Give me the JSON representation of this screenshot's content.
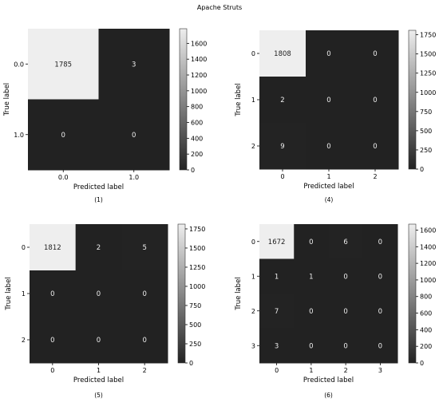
{
  "figure": {
    "title": "Apache Struts"
  },
  "chart_data": [
    {
      "type": "heatmap",
      "caption": "(1)",
      "xlabel": "Predicted label",
      "ylabel": "True label",
      "x_ticks": [
        "0.0",
        "1.0"
      ],
      "y_ticks": [
        "0.0",
        "1.0"
      ],
      "values": [
        [
          1785,
          3
        ],
        [
          0,
          0
        ]
      ],
      "colorbar": {
        "range": [
          0,
          1785
        ],
        "ticks": [
          "0",
          "200",
          "400",
          "600",
          "800",
          "1000",
          "1200",
          "1400",
          "1600"
        ],
        "tick_values": [
          0,
          200,
          400,
          600,
          800,
          1000,
          1200,
          1400,
          1600
        ]
      },
      "colormap": [
        "#222222",
        "#eeeeee"
      ]
    },
    {
      "type": "heatmap",
      "caption": "(4)",
      "xlabel": "Predicted label",
      "ylabel": "True label",
      "x_ticks": [
        "0",
        "1",
        "2"
      ],
      "y_ticks": [
        "0",
        "1",
        "2"
      ],
      "values": [
        [
          1808,
          0,
          0
        ],
        [
          2,
          0,
          0
        ],
        [
          9,
          0,
          0
        ]
      ],
      "colorbar": {
        "range": [
          0,
          1808
        ],
        "ticks": [
          "0",
          "250",
          "500",
          "750",
          "1000",
          "1250",
          "1500",
          "1750"
        ],
        "tick_values": [
          0,
          250,
          500,
          750,
          1000,
          1250,
          1500,
          1750
        ]
      },
      "colormap": [
        "#222222",
        "#eeeeee"
      ]
    },
    {
      "type": "heatmap",
      "caption": "(5)",
      "xlabel": "Predicted label",
      "ylabel": "True label",
      "x_ticks": [
        "0",
        "1",
        "2"
      ],
      "y_ticks": [
        "0",
        "1",
        "2"
      ],
      "values": [
        [
          1812,
          2,
          5
        ],
        [
          0,
          0,
          0
        ],
        [
          0,
          0,
          0
        ]
      ],
      "colorbar": {
        "range": [
          0,
          1812
        ],
        "ticks": [
          "0",
          "250",
          "500",
          "750",
          "1000",
          "1250",
          "1500",
          "1750"
        ],
        "tick_values": [
          0,
          250,
          500,
          750,
          1000,
          1250,
          1500,
          1750
        ]
      },
      "colormap": [
        "#222222",
        "#eeeeee"
      ]
    },
    {
      "type": "heatmap",
      "caption": "(6)",
      "xlabel": "Predicted label",
      "ylabel": "True label",
      "x_ticks": [
        "0",
        "1",
        "2",
        "3"
      ],
      "y_ticks": [
        "0",
        "1",
        "2",
        "3"
      ],
      "values": [
        [
          1672,
          0,
          6,
          0
        ],
        [
          1,
          1,
          0,
          0
        ],
        [
          7,
          0,
          0,
          0
        ],
        [
          3,
          0,
          0,
          0
        ]
      ],
      "colorbar": {
        "range": [
          0,
          1672
        ],
        "ticks": [
          "0",
          "200",
          "400",
          "600",
          "800",
          "1000",
          "1200",
          "1400",
          "1600"
        ],
        "tick_values": [
          0,
          200,
          400,
          600,
          800,
          1000,
          1200,
          1400,
          1600
        ]
      },
      "colormap": [
        "#222222",
        "#eeeeee"
      ]
    }
  ]
}
